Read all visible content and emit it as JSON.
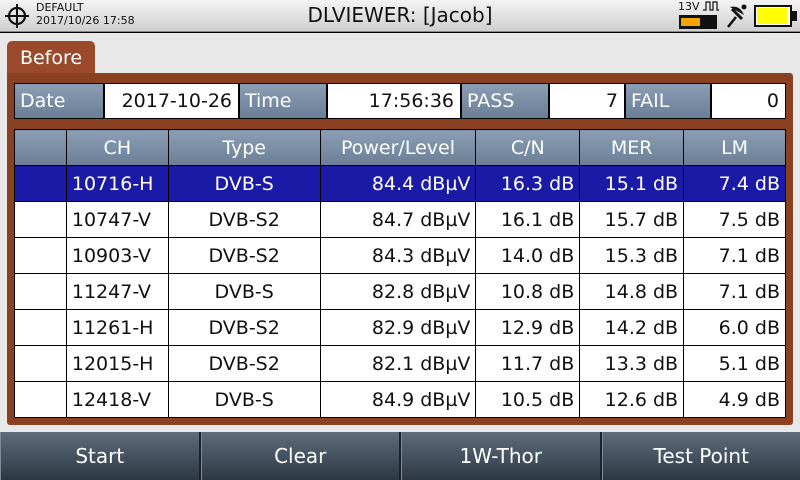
{
  "status": {
    "profile": "DEFAULT",
    "datetime": "2017/10/26 17:58",
    "title": "DLVIEWER: [Jacob]",
    "voltage": "13V",
    "voltage_level": 0.55,
    "battery_level": 0.95,
    "colors": {
      "voltage_fill": "#f5a400",
      "battery_fill": "#ffff00"
    }
  },
  "tab": {
    "label": "Before"
  },
  "info": {
    "date_label": "Date",
    "date_value": "2017-10-26",
    "time_label": "Time",
    "time_value": "17:56:36",
    "pass_label": "PASS",
    "pass_value": "7",
    "fail_label": "FAIL",
    "fail_value": "0"
  },
  "table": {
    "headers": [
      "",
      "CH",
      "Type",
      "Power/Level",
      "C/N",
      "MER",
      "LM"
    ],
    "selected_row": 0,
    "rows": [
      {
        "ch": "10716-H",
        "type": "DVB-S",
        "power": "84.4 dBµV",
        "cn": "16.3 dB",
        "mer": "15.1 dB",
        "lm": "7.4 dB"
      },
      {
        "ch": "10747-V",
        "type": "DVB-S2",
        "power": "84.7 dBµV",
        "cn": "16.1 dB",
        "mer": "15.7 dB",
        "lm": "7.5 dB"
      },
      {
        "ch": "10903-V",
        "type": "DVB-S2",
        "power": "84.3 dBµV",
        "cn": "14.0 dB",
        "mer": "15.3 dB",
        "lm": "7.1 dB"
      },
      {
        "ch": "11247-V",
        "type": "DVB-S",
        "power": "82.8 dBµV",
        "cn": "10.8 dB",
        "mer": "14.8 dB",
        "lm": "7.1 dB"
      },
      {
        "ch": "11261-H",
        "type": "DVB-S2",
        "power": "82.9 dBµV",
        "cn": "12.9 dB",
        "mer": "14.2 dB",
        "lm": "6.0 dB"
      },
      {
        "ch": "12015-H",
        "type": "DVB-S2",
        "power": "82.1 dBµV",
        "cn": "11.7 dB",
        "mer": "13.3 dB",
        "lm": "5.1 dB"
      },
      {
        "ch": "12418-V",
        "type": "DVB-S",
        "power": "84.9 dBµV",
        "cn": "10.5 dB",
        "mer": "12.6 dB",
        "lm": "4.9 dB"
      }
    ]
  },
  "softkeys": {
    "start": "Start",
    "clear": "Clear",
    "thor": "1W-Thor",
    "testpoint": "Test Point"
  }
}
